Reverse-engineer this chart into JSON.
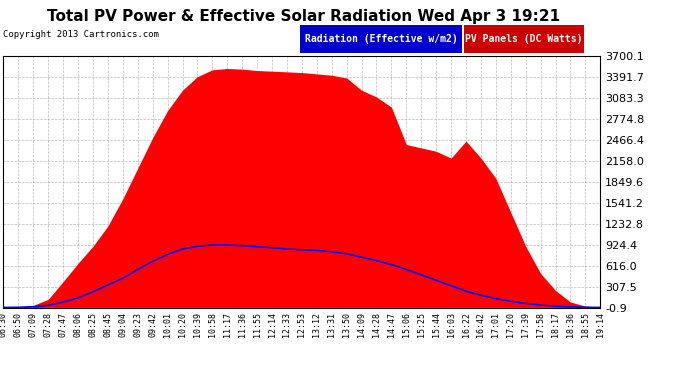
{
  "title": "Total PV Power & Effective Solar Radiation Wed Apr 3 19:21",
  "copyright": "Copyright 2013 Cartronics.com",
  "legend_labels": [
    "Radiation (Effective w/m2)",
    "PV Panels (DC Watts)"
  ],
  "legend_blue_bg": "#0000cc",
  "legend_red_bg": "#cc0000",
  "ymin": -0.9,
  "ymax": 3700.1,
  "yticks": [
    3700.1,
    3391.7,
    3083.3,
    2774.8,
    2466.4,
    2158.0,
    1849.6,
    1541.2,
    1232.8,
    924.4,
    616.0,
    307.5,
    -0.9
  ],
  "background_color": "#ffffff",
  "plot_bg_color": "#ffffff",
  "grid_color": "#aaaaaa",
  "title_color": "#000000",
  "tick_color": "#000000",
  "x_labels": [
    "06:30",
    "06:50",
    "07:09",
    "07:28",
    "07:47",
    "08:06",
    "08:25",
    "08:45",
    "09:04",
    "09:23",
    "09:42",
    "10:01",
    "10:20",
    "10:39",
    "10:58",
    "11:17",
    "11:36",
    "11:55",
    "12:14",
    "12:33",
    "12:53",
    "13:12",
    "13:31",
    "13:50",
    "14:09",
    "14:28",
    "14:47",
    "15:06",
    "15:25",
    "15:44",
    "16:03",
    "16:22",
    "16:42",
    "17:01",
    "17:20",
    "17:39",
    "17:58",
    "18:17",
    "18:36",
    "18:55",
    "19:14"
  ],
  "pv_values": [
    0,
    5,
    30,
    120,
    380,
    650,
    900,
    1200,
    1600,
    2050,
    2500,
    2900,
    3200,
    3400,
    3500,
    3520,
    3510,
    3490,
    3480,
    3470,
    3460,
    3440,
    3420,
    3380,
    3200,
    3100,
    2950,
    2400,
    2350,
    2300,
    2200,
    2450,
    2200,
    1900,
    1400,
    900,
    500,
    250,
    80,
    20,
    0
  ],
  "rad_values": [
    0,
    2,
    10,
    30,
    80,
    140,
    230,
    330,
    430,
    560,
    680,
    780,
    860,
    900,
    920,
    920,
    910,
    895,
    880,
    860,
    850,
    840,
    820,
    790,
    740,
    690,
    630,
    560,
    480,
    400,
    320,
    240,
    180,
    130,
    90,
    60,
    35,
    18,
    8,
    2,
    0
  ]
}
